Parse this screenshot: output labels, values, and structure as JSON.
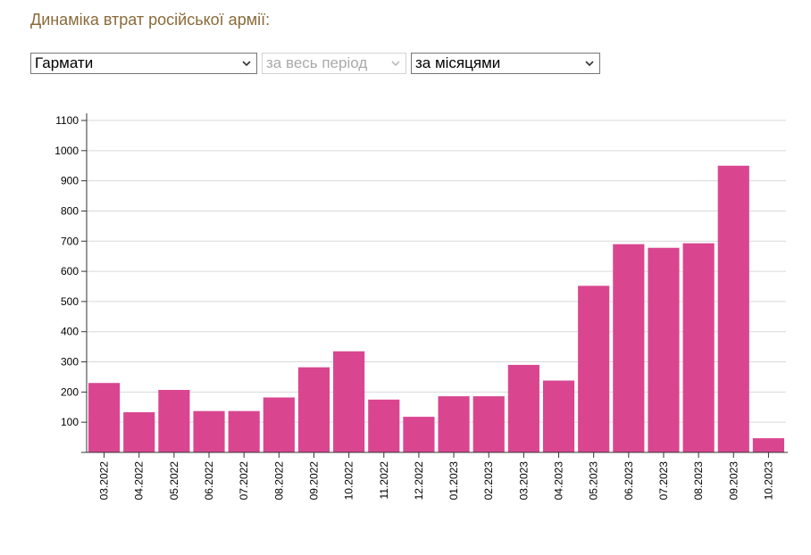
{
  "page": {
    "title": "Динаміка втрат російської армії:"
  },
  "controls": {
    "category": {
      "value": "Гармати"
    },
    "period": {
      "value": "за весь період",
      "disabled": true
    },
    "grouping": {
      "value": "за місяцями"
    }
  },
  "colors": {
    "bar": "#d9468f",
    "grid": "#d9d9d9",
    "axis": "#333333",
    "title": "#8a6a3a"
  },
  "chart_data": {
    "type": "bar",
    "title": "",
    "xlabel": "",
    "ylabel": "",
    "ylim": [
      0,
      1100
    ],
    "yticks": [
      100,
      200,
      300,
      400,
      500,
      600,
      700,
      800,
      900,
      1000,
      1100
    ],
    "grid": true,
    "categories": [
      "03.2022",
      "04.2022",
      "05.2022",
      "06.2022",
      "07.2022",
      "08.2022",
      "09.2022",
      "10.2022",
      "11.2022",
      "12.2022",
      "01.2023",
      "02.2023",
      "03.2023",
      "04.2023",
      "05.2023",
      "06.2023",
      "07.2023",
      "08.2023",
      "09.2023",
      "10.2023"
    ],
    "values": [
      230,
      133,
      207,
      137,
      137,
      182,
      282,
      335,
      175,
      118,
      186,
      186,
      290,
      238,
      552,
      690,
      678,
      693,
      950,
      47
    ]
  }
}
